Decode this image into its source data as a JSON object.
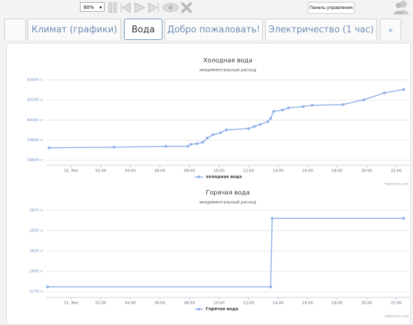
{
  "toolbar": {
    "zoom": "90%",
    "button": "Панель управления"
  },
  "tabs": [
    "Климат (графики)",
    "Вода",
    "Добро пожаловать!",
    "Электричество (1 час)",
    "»"
  ],
  "chart_data": [
    {
      "type": "line",
      "title": "Холодная вода",
      "subtitle": "инкрементальный расход",
      "credits": "Highcharts.com",
      "x": [
        -1.5,
        2.9,
        6.4,
        7.9,
        8.1,
        8.5,
        8.9,
        9.2,
        9.6,
        10.1,
        10.5,
        12.0,
        12.4,
        12.8,
        13.3,
        13.5,
        13.7,
        14.3,
        14.7,
        15.7,
        16.3,
        18.4,
        19.8,
        21.2,
        22.5
      ],
      "series": [
        {
          "name": "холодная вода",
          "color": "#8fb0e8",
          "values": [
            39724,
            39730,
            39738,
            39738,
            39758,
            39765,
            39779,
            39820,
            39854,
            39874,
            39902,
            39915,
            39936,
            39956,
            39984,
            40018,
            40086,
            40100,
            40120,
            40134,
            40147,
            40154,
            40202,
            40270,
            40304
          ]
        }
      ],
      "xlim": [
        -1.7,
        22.9
      ],
      "xticks": [
        {
          "value": 0,
          "label": "31. Mar"
        },
        {
          "value": 2,
          "label": "02:00"
        },
        {
          "value": 4,
          "label": "04:00"
        },
        {
          "value": 6,
          "label": "06:00"
        },
        {
          "value": 8,
          "label": "08:00"
        },
        {
          "value": 10,
          "label": "10:00"
        },
        {
          "value": 12,
          "label": "12:00"
        },
        {
          "value": 14,
          "label": "14:00"
        },
        {
          "value": 16,
          "label": "16:00"
        },
        {
          "value": 18,
          "label": "18:00"
        },
        {
          "value": 20,
          "label": "20:00"
        },
        {
          "value": 22,
          "label": "22:00"
        }
      ],
      "ylim": [
        39550,
        40475
      ],
      "yticks": [
        {
          "value": 39600,
          "label": "39600 л"
        },
        {
          "value": 39800,
          "label": "39800 л"
        },
        {
          "value": 40000,
          "label": "40000 л"
        },
        {
          "value": 40200,
          "label": "40200 л"
        },
        {
          "value": 40400,
          "label": "40400 л"
        }
      ],
      "grid": true
    },
    {
      "type": "line",
      "title": "Горячая вода",
      "subtitle": "инкрементальный расход",
      "credits": "Highcharts.com",
      "x": [
        -1.6,
        13.5,
        13.6,
        22.5
      ],
      "series": [
        {
          "name": "Горячая вода",
          "color": "#8fb0e8",
          "values": [
            2781,
            2781,
            2865,
            2865
          ]
        }
      ],
      "xlim": [
        -1.7,
        22.9
      ],
      "xticks": [
        {
          "value": 0,
          "label": "31. Mar"
        },
        {
          "value": 2,
          "label": "02:00"
        },
        {
          "value": 4,
          "label": "04:00"
        },
        {
          "value": 6,
          "label": "06:00"
        },
        {
          "value": 8,
          "label": "08:00"
        },
        {
          "value": 10,
          "label": "10:00"
        },
        {
          "value": 12,
          "label": "12:00"
        },
        {
          "value": 14,
          "label": "14:00"
        },
        {
          "value": 16,
          "label": "16:00"
        },
        {
          "value": 18,
          "label": "18:00"
        },
        {
          "value": 20,
          "label": "20:00"
        },
        {
          "value": 22,
          "label": "22:00"
        }
      ],
      "ylim": [
        2768,
        2882
      ],
      "yticks": [
        {
          "value": 2775,
          "label": "2775 л"
        },
        {
          "value": 2800,
          "label": "2800 л"
        },
        {
          "value": 2825,
          "label": "2825 л"
        },
        {
          "value": 2850,
          "label": "2850 л"
        },
        {
          "value": 2875,
          "label": "2875 л"
        }
      ],
      "grid": true
    }
  ]
}
